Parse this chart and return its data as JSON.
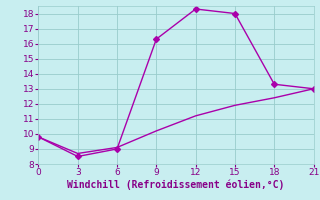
{
  "line1_x": [
    0,
    3,
    6,
    9,
    12,
    15,
    18,
    21
  ],
  "line1_y": [
    9.8,
    8.5,
    9.0,
    16.3,
    18.3,
    18.0,
    13.3,
    13.0
  ],
  "line2_x": [
    0,
    3,
    6,
    9,
    12,
    15,
    18,
    21
  ],
  "line2_y": [
    9.8,
    8.7,
    9.1,
    10.2,
    11.2,
    11.9,
    12.4,
    13.0
  ],
  "line_color": "#aa00aa",
  "bg_color": "#c8eef0",
  "grid_color": "#99cccc",
  "xlabel": "Windchill (Refroidissement éolien,°C)",
  "xlabel_color": "#880088",
  "tick_color": "#880088",
  "xlim": [
    0,
    21
  ],
  "ylim": [
    8,
    18.5
  ],
  "xticks": [
    0,
    3,
    6,
    9,
    12,
    15,
    18,
    21
  ],
  "yticks": [
    8,
    9,
    10,
    11,
    12,
    13,
    14,
    15,
    16,
    17,
    18
  ],
  "marker": "D",
  "marker_size": 3,
  "linewidth": 1.0,
  "tick_fontsize": 6.5,
  "xlabel_fontsize": 7.0
}
